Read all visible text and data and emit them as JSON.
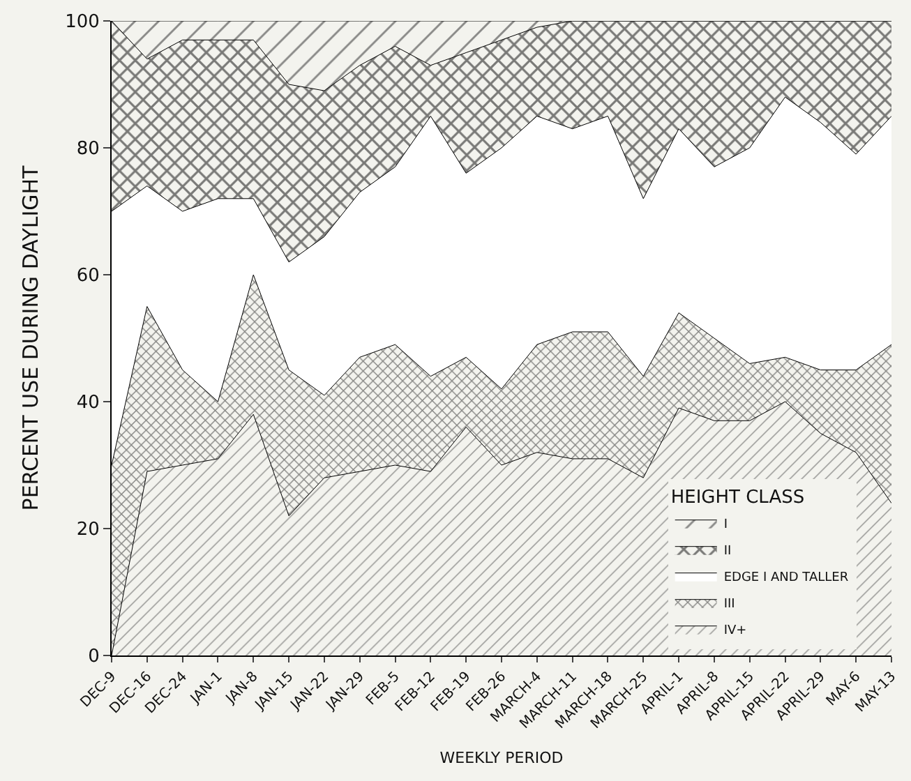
{
  "chart_data": {
    "type": "area",
    "stacked": true,
    "xlabel": "WEEKLY PERIOD",
    "ylabel": "PERCENT USE DURING DAYLIGHT",
    "legend_title": "HEIGHT CLASS",
    "legend": "bottom right",
    "marker": "none",
    "categories": [
      "DEC-9",
      "DEC-16",
      "DEC-24",
      "JAN-1",
      "JAN-8",
      "JAN-15",
      "JAN-22",
      "JAN-29",
      "FEB-5",
      "FEB-12",
      "FEB-19",
      "FEB-26",
      "MARCH-4",
      "MARCH-11",
      "MARCH-18",
      "MARCH-25",
      "APRIL-1",
      "APRIL-8",
      "APRIL-15",
      "APRIL-22",
      "APRIL-29",
      "MAY-6",
      "MAY-13"
    ],
    "ylim": [
      0,
      100
    ],
    "yticks": [
      0,
      20,
      40,
      60,
      80,
      100
    ],
    "series": [
      {
        "name": "IV+",
        "color": "#333333",
        "values": [
          0,
          29,
          30,
          31,
          38,
          22,
          28,
          29,
          30,
          29,
          36,
          30,
          32,
          31,
          31,
          28,
          39,
          37,
          37,
          40,
          35,
          32,
          24
        ]
      },
      {
        "name": "III",
        "color": "#111111",
        "values": [
          30,
          26,
          15,
          9,
          22,
          23,
          13,
          18,
          19,
          15,
          11,
          12,
          17,
          20,
          20,
          16,
          15,
          13,
          9,
          7,
          10,
          13,
          25
        ]
      },
      {
        "name": "EDGE I AND TALLER",
        "color": "#ffffff",
        "values": [
          40,
          19,
          25,
          32,
          12,
          17,
          25,
          26,
          28,
          41,
          29,
          38,
          36,
          32,
          34,
          28,
          29,
          27,
          34,
          41,
          39,
          34,
          36
        ]
      },
      {
        "name": "II",
        "color": "#000000",
        "values": [
          30,
          20,
          27,
          25,
          25,
          28,
          23,
          20,
          19,
          8,
          19,
          17,
          14,
          17,
          15,
          28,
          17,
          23,
          20,
          12,
          16,
          21,
          15
        ]
      },
      {
        "name": "I",
        "color": "#222222",
        "values": [
          0,
          6,
          3,
          3,
          3,
          10,
          11,
          7,
          4,
          7,
          5,
          3,
          1,
          0,
          0,
          0,
          0,
          0,
          0,
          0,
          0,
          0,
          0
        ]
      }
    ]
  }
}
